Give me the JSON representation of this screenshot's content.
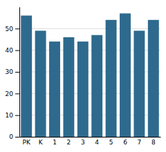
{
  "chart_data": {
    "type": "bar",
    "categories": [
      "PK",
      "K",
      "1",
      "2",
      "3",
      "4",
      "5",
      "6",
      "7",
      "8"
    ],
    "values": [
      56,
      49,
      44,
      46,
      44,
      47,
      54,
      57,
      49,
      54
    ],
    "color": "#2e6a8e",
    "ylim": [
      0,
      60
    ],
    "yticks": [
      0,
      10,
      20,
      30,
      40,
      50
    ],
    "grid": true
  }
}
